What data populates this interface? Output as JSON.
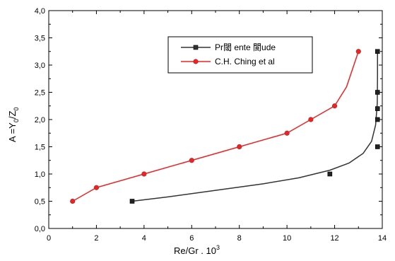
{
  "chart_data": {
    "type": "line",
    "title": "",
    "xlabel": "Re/Gr . 10",
    "xlabel_superscript": "3",
    "ylabel_parts": {
      "a": "A =Y",
      "sub1": "0",
      "mid": "/Z",
      "sub2": "0"
    },
    "xlim": [
      0,
      14
    ],
    "ylim": [
      0,
      4
    ],
    "x_ticks": [
      "0",
      "2",
      "4",
      "6",
      "8",
      "10",
      "12",
      "14"
    ],
    "y_ticks": [
      "0,0",
      "0,5",
      "1,0",
      "1,5",
      "2,0",
      "2,5",
      "3,0",
      "3,5",
      "4,0"
    ],
    "grid": false,
    "legend_position": "top-right",
    "series": [
      {
        "name": "Pr閾 ente 閬ude",
        "color": "#000000",
        "line_color": "#333333",
        "marker": "square",
        "points": [
          [
            3.5,
            0.5
          ],
          [
            11.8,
            1.0
          ],
          [
            13.8,
            1.5
          ],
          [
            13.8,
            2.0
          ],
          [
            13.8,
            2.2
          ],
          [
            13.8,
            2.5
          ],
          [
            13.8,
            3.25
          ]
        ],
        "curve": [
          [
            3.5,
            0.5
          ],
          [
            5,
            0.58
          ],
          [
            7,
            0.7
          ],
          [
            9,
            0.82
          ],
          [
            10.5,
            0.93
          ],
          [
            11.8,
            1.07
          ],
          [
            12.6,
            1.2
          ],
          [
            13.2,
            1.38
          ],
          [
            13.55,
            1.6
          ],
          [
            13.72,
            1.9
          ],
          [
            13.79,
            2.3
          ],
          [
            13.8,
            2.8
          ],
          [
            13.8,
            3.25
          ]
        ]
      },
      {
        "name": "C.H. Ching et al",
        "color": "#ee2222",
        "line_color": "#ee2222",
        "marker": "circle",
        "points": [
          [
            1,
            0.5
          ],
          [
            2,
            0.75
          ],
          [
            4,
            1.0
          ],
          [
            6,
            1.25
          ],
          [
            8,
            1.5
          ],
          [
            10,
            1.75
          ],
          [
            11,
            2.0
          ],
          [
            12,
            2.25
          ],
          [
            13,
            3.25
          ]
        ],
        "curve": [
          [
            1,
            0.5
          ],
          [
            2,
            0.75
          ],
          [
            4,
            1.0
          ],
          [
            6,
            1.25
          ],
          [
            8,
            1.5
          ],
          [
            10,
            1.75
          ],
          [
            11,
            2.0
          ],
          [
            12,
            2.25
          ],
          [
            12.5,
            2.6
          ],
          [
            13,
            3.25
          ]
        ]
      }
    ]
  }
}
